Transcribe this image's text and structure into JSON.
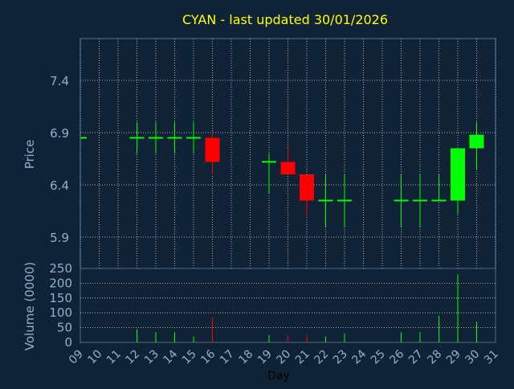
{
  "chart_data": [
    {
      "type": "candlestick",
      "title": "CYAN - last updated 30/01/2026",
      "ylabel": "Price",
      "ylim": [
        5.6,
        7.8
      ],
      "yticks": [
        "7.4",
        "6.9",
        "6.4",
        "5.9"
      ],
      "grid": true,
      "colors": {
        "up": "#00ff00",
        "down": "#ff0000",
        "background": "#0f2236",
        "grid": "#c8d6e6",
        "text": "#8fb2d0",
        "title": "#ffff00"
      },
      "candles": [
        {
          "day": "09",
          "open": 6.85,
          "close": 6.85,
          "high": 6.85,
          "low": 6.85
        },
        {
          "day": "12",
          "open": 6.85,
          "close": 6.85,
          "high": 7.0,
          "low": 6.7
        },
        {
          "day": "13",
          "open": 6.85,
          "close": 6.85,
          "high": 7.0,
          "low": 6.7
        },
        {
          "day": "14",
          "open": 6.85,
          "close": 6.85,
          "high": 7.0,
          "low": 6.7
        },
        {
          "day": "15",
          "open": 6.85,
          "close": 6.85,
          "high": 7.0,
          "low": 6.7
        },
        {
          "day": "16",
          "open": 6.85,
          "close": 6.62,
          "high": 6.9,
          "low": 6.5
        },
        {
          "day": "19",
          "open": 6.62,
          "close": 6.62,
          "high": 6.7,
          "low": 6.32
        },
        {
          "day": "20",
          "open": 6.62,
          "close": 6.5,
          "high": 6.75,
          "low": 6.5
        },
        {
          "day": "21",
          "open": 6.5,
          "close": 6.25,
          "high": 6.5,
          "low": 6.1
        },
        {
          "day": "22",
          "open": 6.25,
          "close": 6.25,
          "high": 6.5,
          "low": 6.0
        },
        {
          "day": "23",
          "open": 6.25,
          "close": 6.25,
          "high": 6.5,
          "low": 6.0
        },
        {
          "day": "26",
          "open": 6.25,
          "close": 6.25,
          "high": 6.5,
          "low": 6.0
        },
        {
          "day": "27",
          "open": 6.25,
          "close": 6.25,
          "high": 6.5,
          "low": 6.0
        },
        {
          "day": "28",
          "open": 6.25,
          "close": 6.25,
          "high": 6.5,
          "low": 6.25
        },
        {
          "day": "29",
          "open": 6.25,
          "close": 6.75,
          "high": 6.75,
          "low": 6.12
        },
        {
          "day": "30",
          "open": 6.75,
          "close": 6.88,
          "high": 7.0,
          "low": 6.55
        }
      ]
    },
    {
      "type": "bar",
      "xlabel": "Day",
      "ylabel": "Volume (0000)",
      "ylim": [
        0,
        250
      ],
      "yticks": [
        "250",
        "200",
        "150",
        "100",
        "50",
        "0"
      ],
      "categories": [
        "09",
        "10",
        "11",
        "12",
        "13",
        "14",
        "15",
        "16",
        "17",
        "18",
        "19",
        "20",
        "21",
        "22",
        "23",
        "24",
        "25",
        "26",
        "27",
        "28",
        "29",
        "30",
        "31"
      ],
      "bars": [
        {
          "day": "09",
          "value": 2,
          "color": "#00ff00"
        },
        {
          "day": "12",
          "value": 45,
          "color": "#00ff00"
        },
        {
          "day": "13",
          "value": 35,
          "color": "#00ff00"
        },
        {
          "day": "14",
          "value": 35,
          "color": "#00ff00"
        },
        {
          "day": "15",
          "value": 20,
          "color": "#00ff00"
        },
        {
          "day": "16",
          "value": 85,
          "color": "#ff0000"
        },
        {
          "day": "19",
          "value": 25,
          "color": "#00ff00"
        },
        {
          "day": "20",
          "value": 25,
          "color": "#ff0000"
        },
        {
          "day": "21",
          "value": 25,
          "color": "#ff0000"
        },
        {
          "day": "22",
          "value": 20,
          "color": "#00ff00"
        },
        {
          "day": "23",
          "value": 30,
          "color": "#00ff00"
        },
        {
          "day": "26",
          "value": 35,
          "color": "#00ff00"
        },
        {
          "day": "27",
          "value": 35,
          "color": "#00ff00"
        },
        {
          "day": "28",
          "value": 90,
          "color": "#00ff00"
        },
        {
          "day": "29",
          "value": 230,
          "color": "#00ff00"
        },
        {
          "day": "30",
          "value": 70,
          "color": "#00ff00"
        }
      ]
    }
  ]
}
